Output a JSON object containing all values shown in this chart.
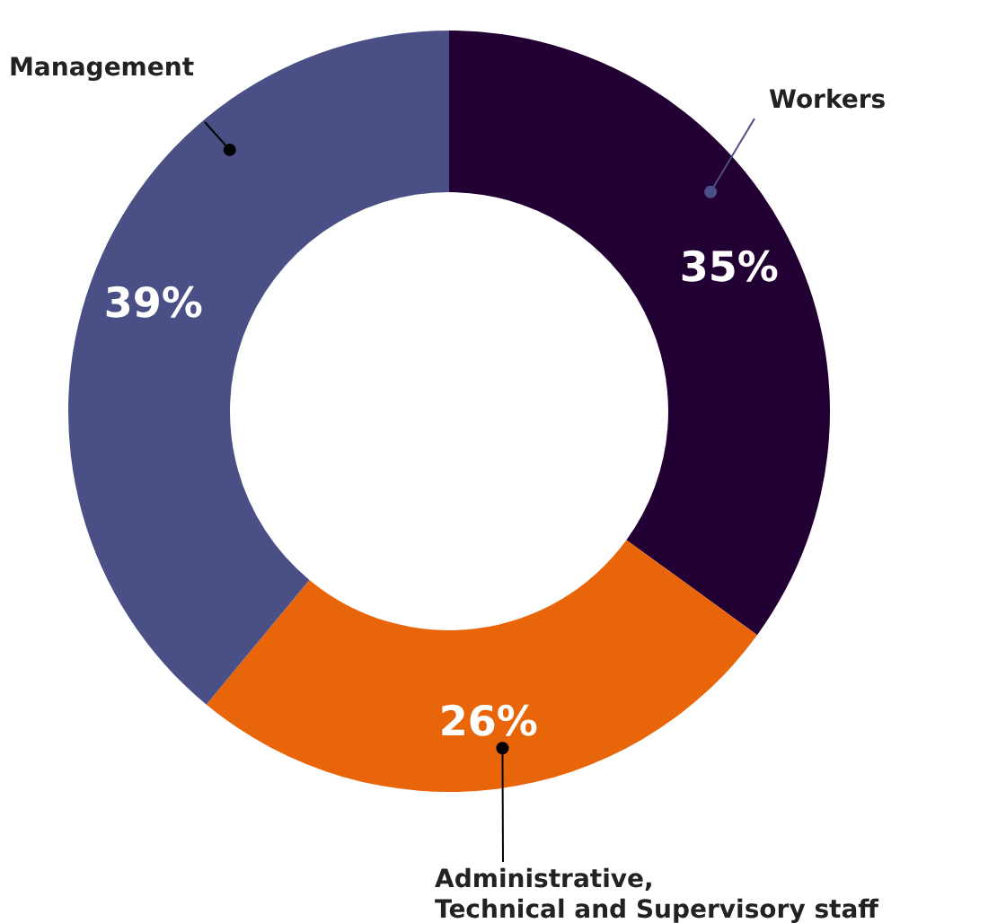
{
  "chart_data": {
    "type": "donut",
    "categories": [
      "Workers",
      "Administrative,\nTechnical and Supervisory staff",
      "Management"
    ],
    "values": [
      35,
      26,
      39
    ],
    "colors": [
      "#220033",
      "#e8650a",
      "#4a5085"
    ],
    "value_labels": [
      "35%",
      "26%",
      "39%"
    ]
  }
}
